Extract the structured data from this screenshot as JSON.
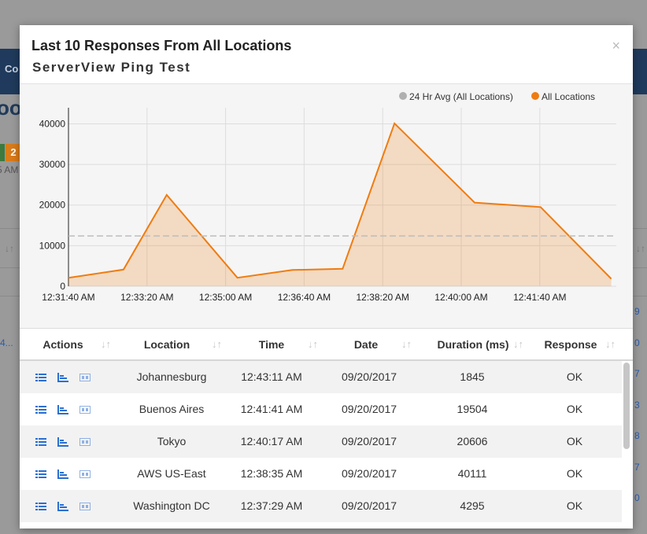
{
  "background": {
    "nav_label": "Co",
    "title_fragment": "oo",
    "badge": "2",
    "time_fragment": "5 AM",
    "left_fragment": "4...",
    "right_fragments": [
      "9",
      "0",
      "7",
      "3",
      "8",
      "7",
      "0"
    ]
  },
  "modal": {
    "title": "Last 10 Responses From All Locations",
    "subtitle": "ServerView Ping Test",
    "close_label": "×"
  },
  "legend": {
    "avg_label": "24 Hr Avg (All Locations)",
    "series_label": "All Locations",
    "avg_color": "#b0b0b0",
    "series_color": "#ef7c10"
  },
  "chart_data": {
    "type": "area",
    "y_ticks": [
      "0",
      "10000",
      "20000",
      "30000",
      "40000"
    ],
    "x_tick_labels": [
      "12:31:40 AM",
      "12:33:20 AM",
      "12:35:00 AM",
      "12:36:40 AM",
      "12:38:20 AM",
      "12:40:00 AM",
      "12:41:40 AM"
    ],
    "ylim": [
      0,
      43000
    ],
    "series": [
      {
        "name": "All Locations",
        "points": [
          {
            "t": "12:31:40 AM",
            "y": 2100
          },
          {
            "t": "12:32:50 AM",
            "y": 4100
          },
          {
            "t": "12:33:45 AM",
            "y": 22500
          },
          {
            "t": "12:35:15 AM",
            "y": 2100
          },
          {
            "t": "12:36:25 AM",
            "y": 4000
          },
          {
            "t": "12:37:29 AM",
            "y": 4295
          },
          {
            "t": "12:38:35 AM",
            "y": 40111
          },
          {
            "t": "12:40:17 AM",
            "y": 20606
          },
          {
            "t": "12:41:41 AM",
            "y": 19504
          },
          {
            "t": "12:43:11 AM",
            "y": 1845
          }
        ]
      }
    ],
    "avg_line": {
      "name": "24 Hr Avg (All Locations)",
      "y": 12400
    }
  },
  "table": {
    "headers": [
      "Actions",
      "Location",
      "Time",
      "Date",
      "Duration (ms)",
      "Response"
    ],
    "rows": [
      {
        "location": "Johannesburg",
        "time": "12:43:11 AM",
        "date": "09/20/2017",
        "duration": "1845",
        "response": "OK"
      },
      {
        "location": "Buenos Aires",
        "time": "12:41:41 AM",
        "date": "09/20/2017",
        "duration": "19504",
        "response": "OK"
      },
      {
        "location": "Tokyo",
        "time": "12:40:17 AM",
        "date": "09/20/2017",
        "duration": "20606",
        "response": "OK"
      },
      {
        "location": "AWS US-East",
        "time": "12:38:35 AM",
        "date": "09/20/2017",
        "duration": "40111",
        "response": "OK"
      },
      {
        "location": "Washington DC",
        "time": "12:37:29 AM",
        "date": "09/20/2017",
        "duration": "4295",
        "response": "OK"
      }
    ]
  }
}
